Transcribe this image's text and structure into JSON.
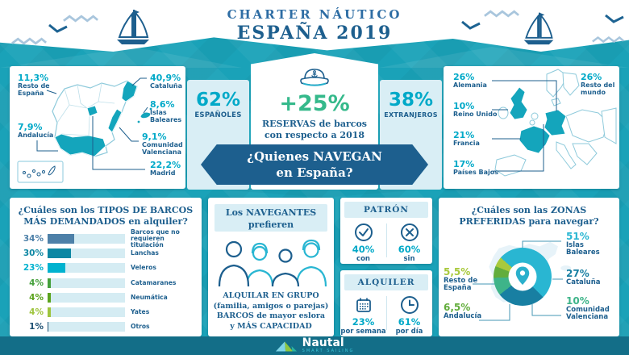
{
  "header": {
    "title_line1": "CHARTER NÁUTICO",
    "title_line2": "ESPAÑA 2019"
  },
  "who_sail": {
    "spanish_pct": "62%",
    "spanish_label": "ESPAÑOLES",
    "foreign_pct": "38%",
    "foreign_label": "EXTRANJEROS",
    "growth_pct": "+25%",
    "growth_line1": "RESERVAS de barcos",
    "growth_line2": "con respecto a 2018",
    "banner_line1": "¿Quienes NAVEGAN",
    "banner_line2": "en España?"
  },
  "spain_regions": {
    "resto": {
      "value": "11,3%",
      "label1": "Resto de",
      "label2": "España"
    },
    "cataluna": {
      "value": "40,9%",
      "label1": "Cataluña"
    },
    "baleares": {
      "value": "8,6%",
      "label1": "Islas",
      "label2": "Baleares"
    },
    "valenciana": {
      "value": "9,1%",
      "label1": "Comunidad",
      "label2": "Valenciana"
    },
    "madrid": {
      "value": "22,2%",
      "label1": "Madrid"
    },
    "andalucia": {
      "value": "7,9%",
      "label1": "Andalucía"
    }
  },
  "foreign_countries": {
    "alemania": {
      "value": "26%",
      "label1": "Alemania"
    },
    "reino_unido": {
      "value": "10%",
      "label1": "Reino Unido"
    },
    "francia": {
      "value": "21%",
      "label1": "Francia"
    },
    "paises_bajos": {
      "value": "17%",
      "label1": "Países Bajos"
    },
    "resto_mundo": {
      "value": "26%",
      "label1": "Resto del",
      "label2": "mundo"
    }
  },
  "boat_types": {
    "title_line1": "¿Cuáles son los TIPOS DE BARCOS",
    "title_line2": "MÁS DEMANDADOS en alquiler?"
  },
  "navigators": {
    "header_line1": "Los NAVEGANTES",
    "header_line2": "prefieren",
    "body_line1": "ALQUILAR EN GRUPO",
    "body_line2": "(familia, amigos o parejas)",
    "body_line3": "BARCOS de mayor eslora",
    "body_line4": "y MÁS CAPACIDAD"
  },
  "patron": {
    "title": "PATRÓN",
    "with_pct": "40%",
    "with_label": "con",
    "without_pct": "60%",
    "without_label": "sin"
  },
  "alquiler": {
    "title": "ALQUILER",
    "week_pct": "23%",
    "week_label": "por semana",
    "day_pct": "61%",
    "day_label": "por día"
  },
  "zones_title": {
    "line1": "¿Cuáles son las ZONAS",
    "line2": "PREFERIDAS para navegar?"
  },
  "footer": {
    "brand": "Nautal",
    "tagline": "SMART SAILING"
  },
  "colors": {
    "background_teal": "#1aa2b8",
    "map_highlight": "#14a5bc",
    "dark_blue": "#1d5f8e",
    "cyan_value": "#00a9c8",
    "green_growth": "#35b98b",
    "light_panel": "#d9eef5",
    "footer_teal": "#136e88"
  },
  "chart_data": [
    {
      "type": "bar",
      "title": "¿Cuáles son los TIPOS DE BARCOS MÁS DEMANDADOS en alquiler?",
      "orientation": "horizontal",
      "categories": [
        "Barcos que no requieren titulación",
        "Lanchas",
        "Veleros",
        "Catamaranes",
        "Neumática",
        "Yates",
        "Otros"
      ],
      "values": [
        34,
        30,
        23,
        4,
        4,
        4,
        1
      ],
      "value_labels": [
        "34%",
        "30%",
        "23%",
        "4%",
        "4%",
        "4%",
        "1%"
      ],
      "bar_colors": [
        "#4d80a8",
        "#0d87a3",
        "#00b2cf",
        "#45a03c",
        "#5ba31d",
        "#9ec43d",
        "#1c4f72"
      ],
      "xlim": [
        0,
        100
      ],
      "grid": false
    },
    {
      "type": "pie",
      "donut": true,
      "title": "¿Cuáles son las ZONAS PREFERIDAS para navegar?",
      "labels": [
        "Islas Baleares",
        "Cataluña",
        "Comunidad Valenciana",
        "Andalucía",
        "Resto de España"
      ],
      "values": [
        51,
        27,
        10,
        6.5,
        5.5
      ],
      "value_labels": [
        "51%",
        "27%",
        "10%",
        "6,5%",
        "5,5%"
      ],
      "colors": [
        "#29b6d2",
        "#187fa2",
        "#3eb489",
        "#62ad3c",
        "#a8c93c"
      ],
      "start_angle_deg": -49
    }
  ]
}
